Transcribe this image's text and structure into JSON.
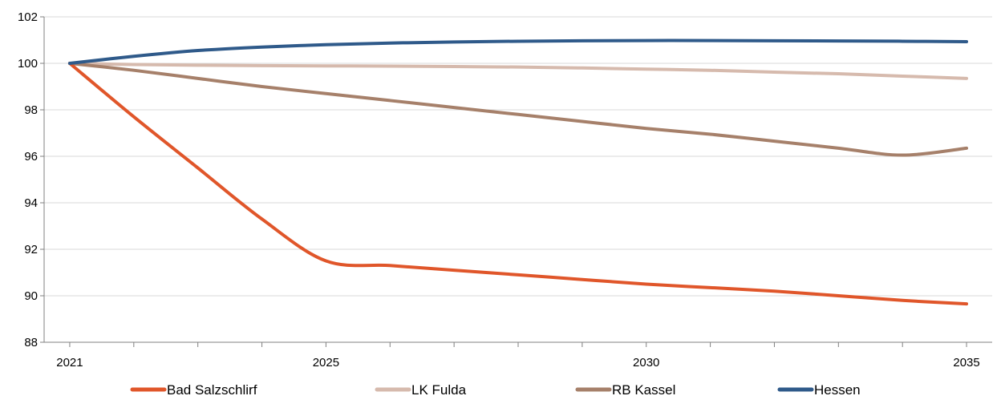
{
  "chart_data": {
    "type": "line",
    "title": "",
    "xlabel": "",
    "ylabel": "",
    "x": [
      2021,
      2022,
      2023,
      2024,
      2025,
      2026,
      2027,
      2028,
      2029,
      2030,
      2031,
      2032,
      2033,
      2034,
      2035
    ],
    "x_tick_labels": [
      "2021",
      "2025",
      "2030",
      "2035"
    ],
    "x_tick_values": [
      2021,
      2025,
      2030,
      2035
    ],
    "ylim": [
      88,
      102
    ],
    "y_ticks": [
      88,
      90,
      92,
      94,
      96,
      98,
      100,
      102
    ],
    "y_tick_labels": [
      "88",
      "90",
      "92",
      "94",
      "96",
      "98",
      "100",
      "102"
    ],
    "grid": "horizontal",
    "legend_position": "bottom",
    "series": [
      {
        "name": "Bad Salzschlirf",
        "color": "#E0562A",
        "values": [
          100.0,
          97.7,
          95.5,
          93.3,
          91.5,
          91.3,
          91.1,
          90.9,
          90.7,
          90.5,
          90.35,
          90.2,
          90.0,
          89.8,
          89.65
        ]
      },
      {
        "name": "LK Fulda",
        "color": "#D6BAAD",
        "values": [
          100.0,
          99.95,
          99.92,
          99.9,
          99.89,
          99.88,
          99.86,
          99.84,
          99.8,
          99.75,
          99.7,
          99.62,
          99.55,
          99.45,
          99.35
        ]
      },
      {
        "name": "RB Kassel",
        "color": "#A6806A",
        "values": [
          100.0,
          99.7,
          99.35,
          99.0,
          98.7,
          98.4,
          98.1,
          97.8,
          97.5,
          97.2,
          96.95,
          96.65,
          96.35,
          96.05,
          96.35
        ]
      },
      {
        "name": "Hessen",
        "color": "#2F5A8A",
        "values": [
          100.0,
          100.3,
          100.55,
          100.7,
          100.8,
          100.87,
          100.92,
          100.95,
          100.97,
          100.98,
          100.98,
          100.97,
          100.96,
          100.95,
          100.93
        ]
      }
    ]
  }
}
